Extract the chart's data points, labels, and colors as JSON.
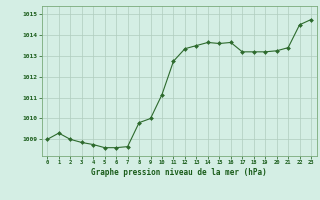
{
  "x": [
    0,
    1,
    2,
    3,
    4,
    5,
    6,
    7,
    8,
    9,
    10,
    11,
    12,
    13,
    14,
    15,
    16,
    17,
    18,
    19,
    20,
    21,
    22,
    23
  ],
  "y": [
    1009.0,
    1009.3,
    1009.0,
    1008.85,
    1008.75,
    1008.6,
    1008.6,
    1008.65,
    1009.8,
    1010.0,
    1011.15,
    1012.75,
    1013.35,
    1013.5,
    1013.65,
    1013.6,
    1013.65,
    1013.2,
    1013.2,
    1013.2,
    1013.25,
    1013.4,
    1014.5,
    1014.75
  ],
  "line_color": "#2d6a2d",
  "marker_color": "#2d6a2d",
  "bg_color": "#d4eee4",
  "grid_color": "#b0ccbe",
  "xlabel": "Graphe pression niveau de la mer (hPa)",
  "xlabel_color": "#1a5c1a",
  "ylabel_ticks": [
    1009,
    1010,
    1011,
    1012,
    1013,
    1014,
    1015
  ],
  "ylim": [
    1008.2,
    1015.4
  ],
  "xlim": [
    -0.5,
    23.5
  ],
  "tick_color": "#1a5c1a",
  "axis_color": "#7aaa7a"
}
